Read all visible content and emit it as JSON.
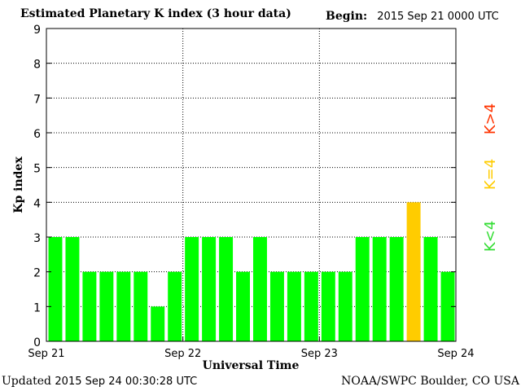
{
  "header": {
    "title": "Estimated Planetary K index (3 hour data)",
    "begin_label": "Begin:",
    "begin_value": "2015 Sep 21 0000 UTC"
  },
  "footer": {
    "updated_label": "Updated",
    "updated_value": "2015 Sep 24 00:30:28 UTC",
    "source": "NOAA/SWPC Boulder, CO USA"
  },
  "colors": {
    "below": "#00ff00",
    "equal": "#ffcc00",
    "above": "#ff2200",
    "background": "#ffffff",
    "axis": "#000000"
  },
  "legend": [
    {
      "text": "K<4",
      "color": "#33dd33"
    },
    {
      "text": "K=4",
      "color": "#ffcc00"
    },
    {
      "text": "K>4",
      "color": "#ff3300"
    }
  ],
  "chart_data": {
    "type": "bar",
    "ylabel": "Kp index",
    "xlabel": "Universal Time",
    "ylim": [
      0,
      9
    ],
    "yticks": [
      "0",
      "1",
      "2",
      "3",
      "4",
      "5",
      "6",
      "7",
      "8",
      "9"
    ],
    "xticks": [
      "Sep 21",
      "Sep 22",
      "Sep 23",
      "Sep 24"
    ],
    "grid": true,
    "values": [
      3,
      3,
      2,
      2,
      2,
      2,
      1,
      2,
      3,
      3,
      3,
      2,
      3,
      2,
      2,
      2,
      2,
      2,
      3,
      3,
      3,
      4,
      3,
      2
    ]
  }
}
